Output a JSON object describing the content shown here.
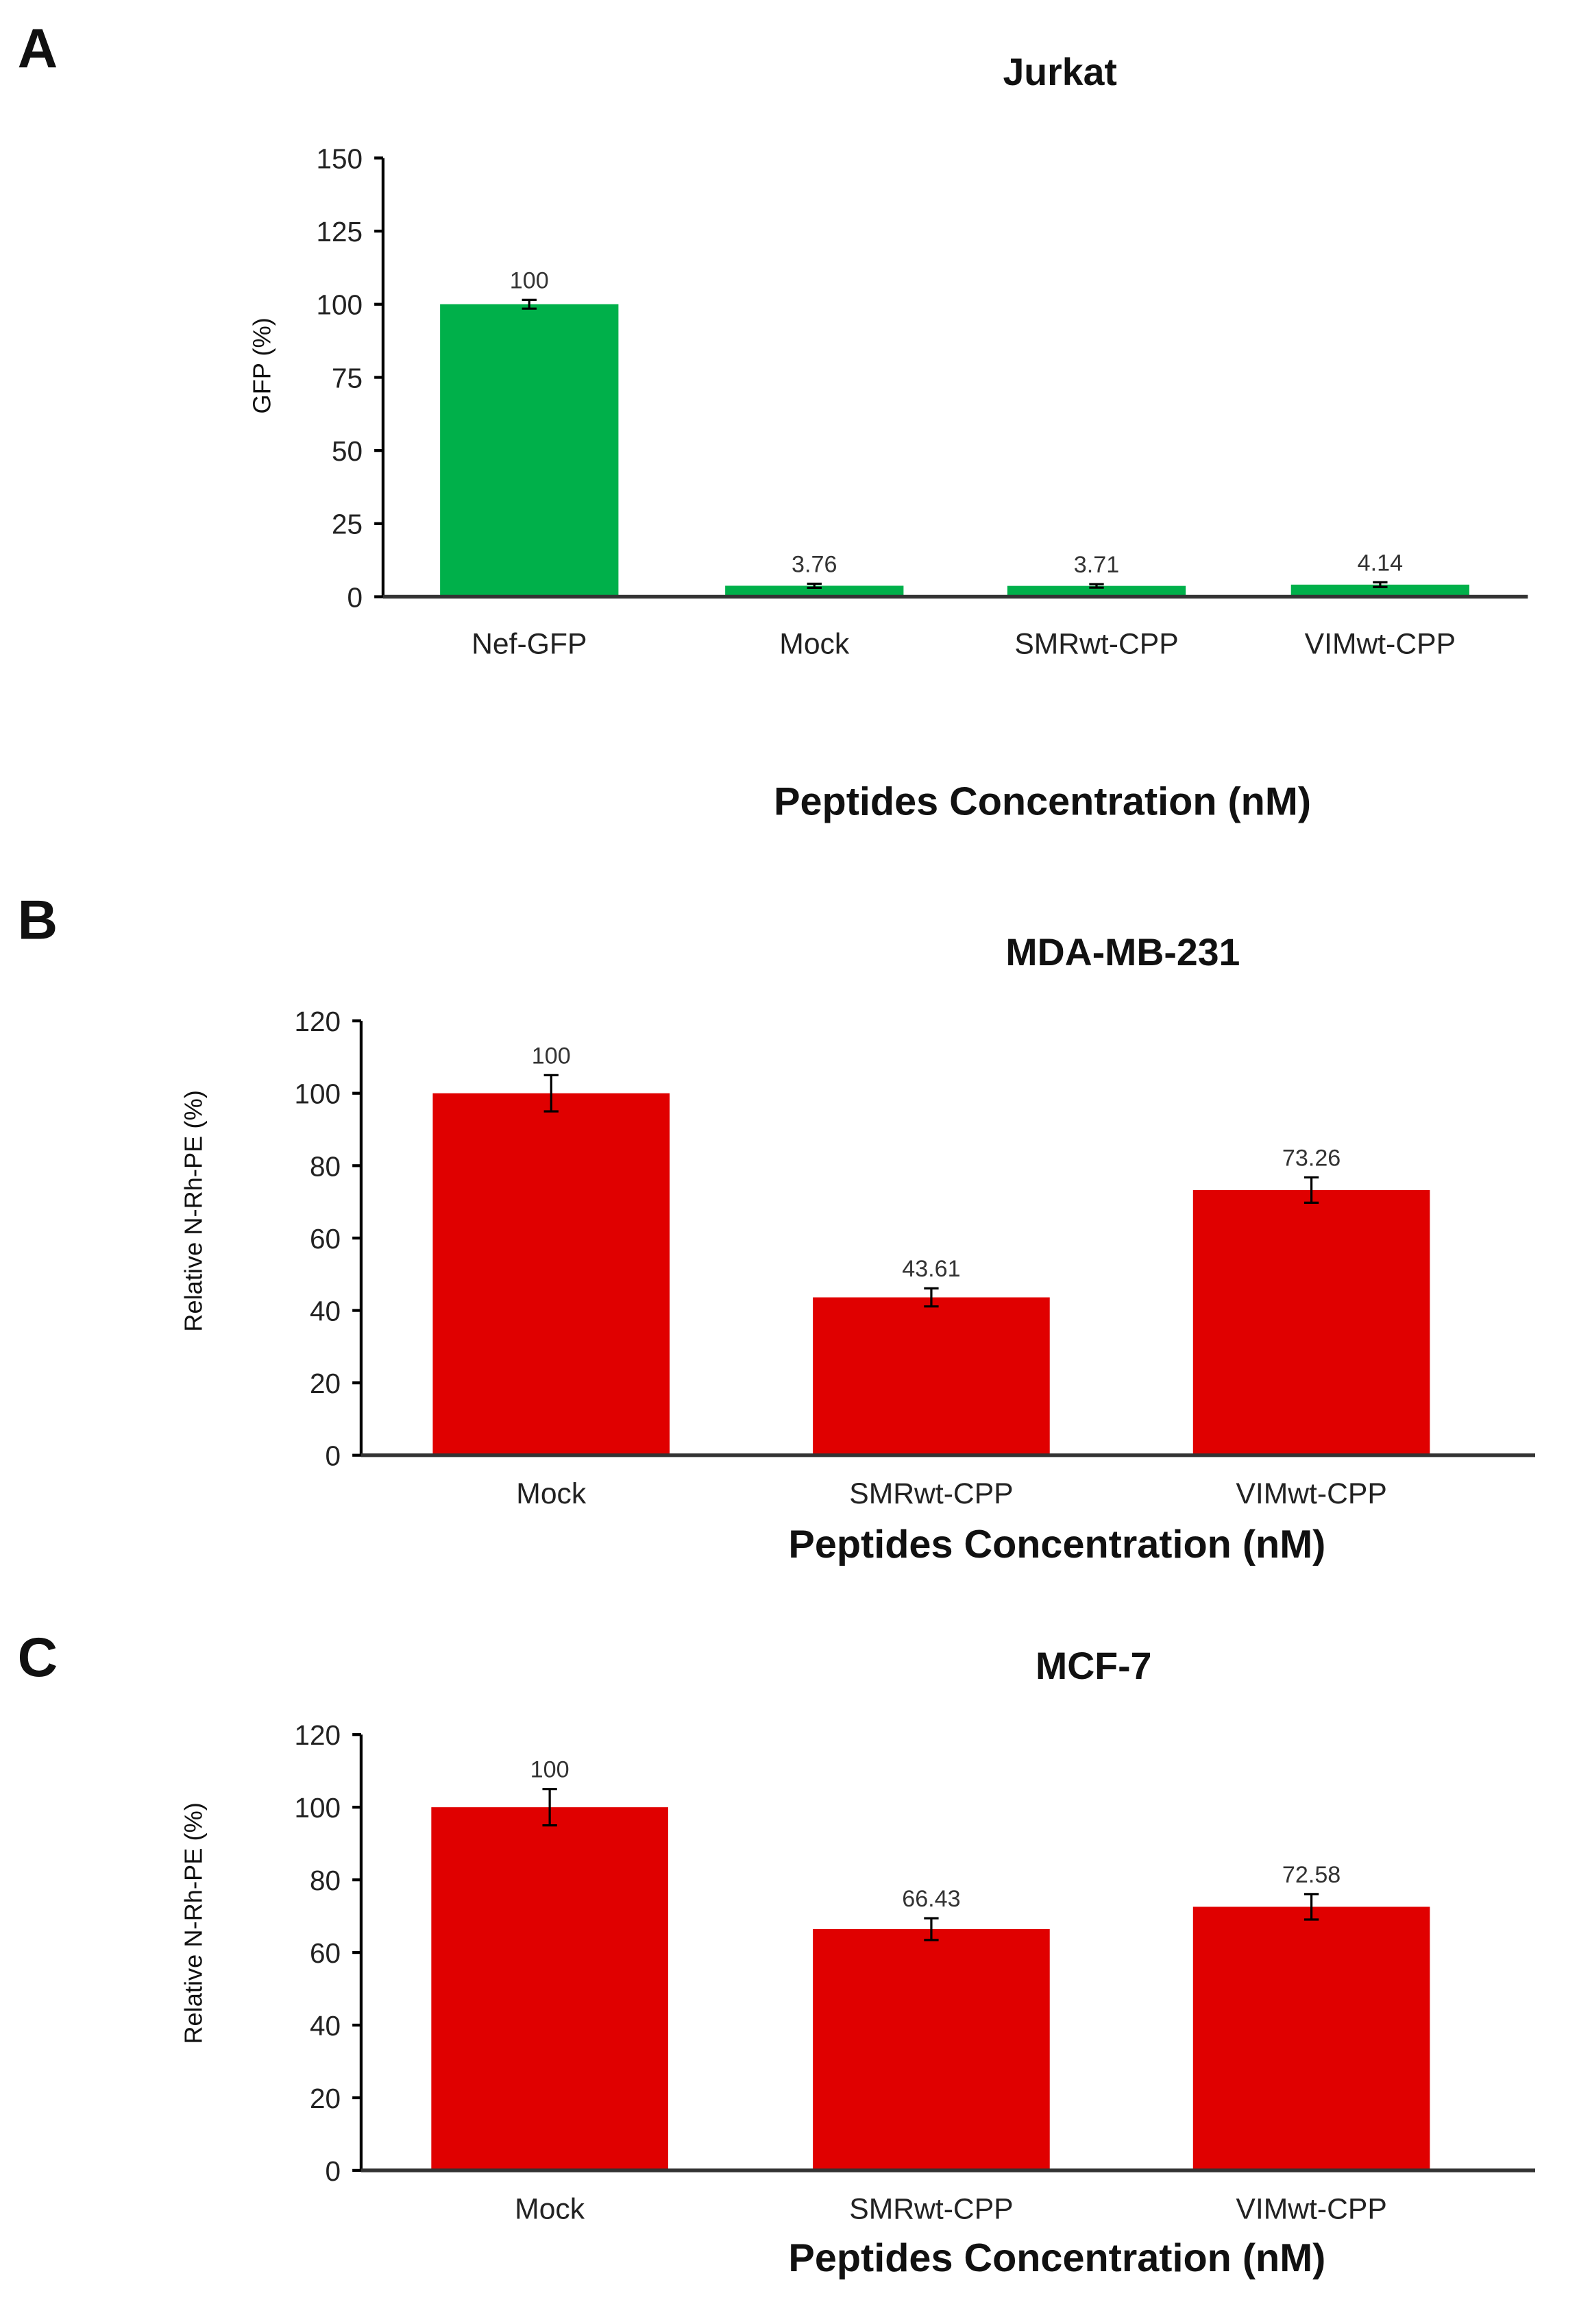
{
  "chart_data": [
    {
      "panel": "A",
      "type": "bar",
      "title": "Jurkat",
      "xlabel": "Peptides Concentration (nM)",
      "ylabel": "GFP (%)",
      "categories": [
        "Nef-GFP",
        "Mock",
        "SMRwt-CPP",
        "VIMwt-CPP"
      ],
      "values": [
        100,
        3.76,
        3.71,
        4.14
      ],
      "data_labels": [
        "100",
        "3.76",
        "3.71",
        "4.14"
      ],
      "errors": [
        1.5,
        0.7,
        0.6,
        0.8
      ],
      "ylim": [
        0,
        150
      ],
      "yticks": [
        0,
        25,
        50,
        75,
        100,
        125,
        150
      ],
      "color": "#00b04a",
      "grid": false
    },
    {
      "panel": "B",
      "type": "bar",
      "title": "MDA-MB-231",
      "xlabel": "Peptides Concentration (nM)",
      "ylabel": "Relative N-Rh-PE (%)",
      "categories": [
        "Mock",
        "SMRwt-CPP",
        "VIMwt-CPP"
      ],
      "values": [
        100,
        43.61,
        73.26
      ],
      "data_labels": [
        "100",
        "43.61",
        "73.26"
      ],
      "errors": [
        5,
        2.5,
        3.5
      ],
      "ylim": [
        0,
        120
      ],
      "yticks": [
        0,
        20,
        40,
        60,
        80,
        100,
        120
      ],
      "color": "#e00000",
      "grid": false
    },
    {
      "panel": "C",
      "type": "bar",
      "title": "MCF-7",
      "xlabel": "Peptides Concentration (nM)",
      "ylabel": "Relative N-Rh-PE (%)",
      "categories": [
        "Mock",
        "SMRwt-CPP",
        "VIMwt-CPP"
      ],
      "values": [
        100,
        66.43,
        72.58
      ],
      "data_labels": [
        "100",
        "66.43",
        "72.58"
      ],
      "errors": [
        5,
        3,
        3.5
      ],
      "ylim": [
        0,
        120
      ],
      "yticks": [
        0,
        20,
        40,
        60,
        80,
        100,
        120
      ],
      "color": "#e00000",
      "grid": false
    }
  ]
}
